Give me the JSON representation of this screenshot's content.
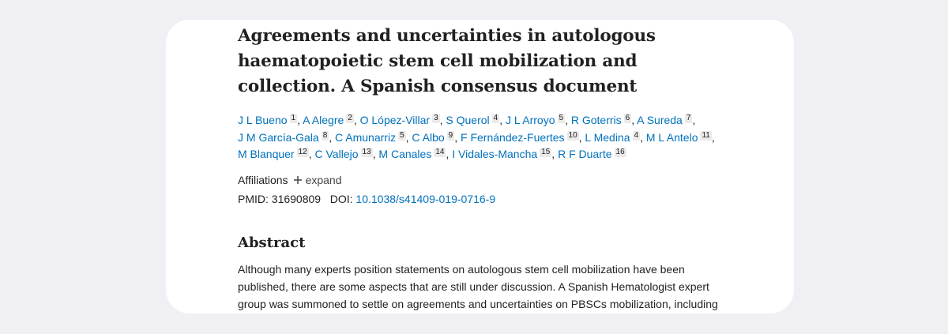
{
  "article": {
    "title": "Agreements and uncertainties in autologous haematopoietic stem cell mobilization and collection. A Spanish consensus document",
    "authors": [
      {
        "name": "J L Bueno",
        "sup": 1
      },
      {
        "name": "A Alegre",
        "sup": 2
      },
      {
        "name": "O López-Villar",
        "sup": 3
      },
      {
        "name": "S Querol",
        "sup": 4
      },
      {
        "name": "J L Arroyo",
        "sup": 5
      },
      {
        "name": "R Goterris",
        "sup": 6
      },
      {
        "name": "A Sureda",
        "sup": 7
      },
      {
        "name": "J M García-Gala",
        "sup": 8
      },
      {
        "name": "C Amunarriz",
        "sup": 5
      },
      {
        "name": "C Albo",
        "sup": 9
      },
      {
        "name": "F Fernández-Fuertes",
        "sup": 10
      },
      {
        "name": "L Medina",
        "sup": 4
      },
      {
        "name": "M L Antelo",
        "sup": 11
      },
      {
        "name": "M Blanquer",
        "sup": 12
      },
      {
        "name": "C Vallejo",
        "sup": 13
      },
      {
        "name": "M Canales",
        "sup": 14
      },
      {
        "name": "I Vidales-Mancha",
        "sup": 15
      },
      {
        "name": "R F Duarte",
        "sup": 16
      }
    ],
    "author_separator": ",",
    "affiliations_label": "Affiliations",
    "expand_label": "expand",
    "pmid_label": "PMID:",
    "pmid": "31690809",
    "doi_label": "DOI:",
    "doi": "10.1038/s41409-019-0716-9",
    "abstract_heading": "Abstract",
    "abstract_lines": [
      "Although many experts position statements on autologous stem cell mobilization have been",
      "published, there are some aspects that are still under discussion. A Spanish Hematologist expert",
      "group was summoned to settle on agreements and uncertainties on PBSCs mobilization, including"
    ]
  }
}
